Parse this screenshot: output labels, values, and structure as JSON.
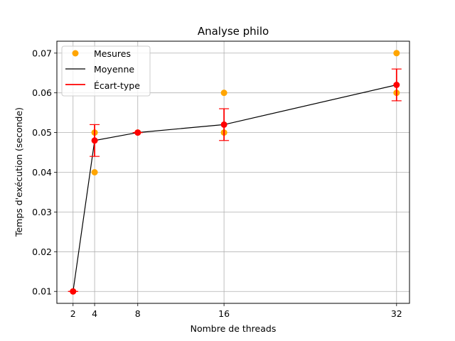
{
  "chart_data": {
    "type": "line",
    "title": "Analyse philo",
    "xlabel": "Nombre de threads",
    "ylabel": "Temps d'exécution (seconde)",
    "xlim": [
      0.5,
      33.2
    ],
    "ylim": [
      0.007,
      0.073
    ],
    "x_ticks": [
      2,
      4,
      8,
      16,
      32
    ],
    "x_tick_labels": [
      "2",
      "4",
      "8",
      "16",
      "32"
    ],
    "y_ticks": [
      0.01,
      0.02,
      0.03,
      0.04,
      0.05,
      0.06,
      0.07
    ],
    "y_tick_labels": [
      "0.01",
      "0.02",
      "0.03",
      "0.04",
      "0.05",
      "0.06",
      "0.07"
    ],
    "grid": true,
    "legend_position": "top-left",
    "series": [
      {
        "name": "Mesures",
        "kind": "scatter",
        "color": "#ffa500",
        "points": [
          {
            "x": 2,
            "y": 0.01
          },
          {
            "x": 4,
            "y": 0.05
          },
          {
            "x": 4,
            "y": 0.04
          },
          {
            "x": 8,
            "y": 0.05
          },
          {
            "x": 16,
            "y": 0.06
          },
          {
            "x": 16,
            "y": 0.05
          },
          {
            "x": 32,
            "y": 0.07
          },
          {
            "x": 32,
            "y": 0.06
          }
        ]
      },
      {
        "name": "Moyenne",
        "kind": "line",
        "color": "#000000",
        "x": [
          2,
          4,
          8,
          16,
          32
        ],
        "y": [
          0.01,
          0.048,
          0.05,
          0.052,
          0.062
        ]
      },
      {
        "name": "Écart-type",
        "kind": "errorbar",
        "color": "#ff0000",
        "x": [
          2,
          4,
          8,
          16,
          32
        ],
        "y": [
          0.01,
          0.048,
          0.05,
          0.052,
          0.062
        ],
        "err": [
          0.0,
          0.004,
          0.0,
          0.004,
          0.004
        ]
      }
    ]
  }
}
